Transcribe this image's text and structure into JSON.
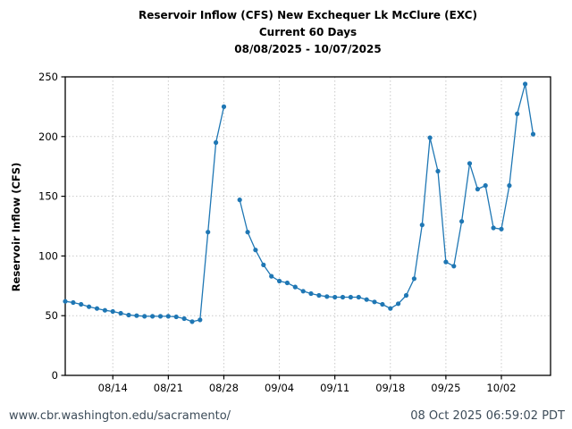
{
  "title": {
    "line1": "Reservoir Inflow (CFS) New Exchequer Lk McClure (EXC)",
    "line2": "Current 60 Days",
    "line3": "08/08/2025 - 10/07/2025"
  },
  "y_axis_label": "Reservoir Inflow (CFS)",
  "footer": {
    "url": "www.cbr.washington.edu/sacramento/",
    "timestamp": "08 Oct 2025 06:59:02 PDT"
  },
  "colors": {
    "line": "#1f77b4",
    "marker": "#1f77b4",
    "grid": "#c9c9c9",
    "axis": "#000000",
    "footer_text": "#3d4c59"
  },
  "chart_data": {
    "type": "line",
    "title": "Reservoir Inflow (CFS) New Exchequer Lk McClure (EXC) — Current 60 Days — 08/08/2025 - 10/07/2025",
    "xlabel": "",
    "ylabel": "Reservoir Inflow (CFS)",
    "legend_position": "none",
    "grid": "dotted",
    "marker_style": "circle",
    "ylim": [
      0,
      250
    ],
    "yticks": [
      0,
      50,
      100,
      150,
      200,
      250
    ],
    "x_axis_span_days": 61.2,
    "xtick_labels": [
      "08/14",
      "08/21",
      "08/28",
      "09/04",
      "09/11",
      "09/18",
      "09/25",
      "10/02"
    ],
    "xtick_day_positions": [
      6,
      13,
      20,
      27,
      34,
      41,
      48,
      55
    ],
    "gap_dates": [
      "08/29"
    ],
    "x": [
      "08/08",
      "08/09",
      "08/10",
      "08/11",
      "08/12",
      "08/13",
      "08/14",
      "08/15",
      "08/16",
      "08/17",
      "08/18",
      "08/19",
      "08/20",
      "08/21",
      "08/22",
      "08/23",
      "08/24",
      "08/25",
      "08/26",
      "08/27",
      "08/28",
      "08/29",
      "08/30",
      "08/31",
      "09/01",
      "09/02",
      "09/03",
      "09/04",
      "09/05",
      "09/06",
      "09/07",
      "09/08",
      "09/09",
      "09/10",
      "09/11",
      "09/12",
      "09/13",
      "09/14",
      "09/15",
      "09/16",
      "09/17",
      "09/18",
      "09/19",
      "09/20",
      "09/21",
      "09/22",
      "09/23",
      "09/24",
      "09/25",
      "09/26",
      "09/27",
      "09/28",
      "09/29",
      "09/30",
      "10/01",
      "10/02",
      "10/03",
      "10/04",
      "10/05",
      "10/06"
    ],
    "values": [
      62,
      61,
      59.5,
      57.5,
      56,
      54.5,
      53.5,
      52,
      50.5,
      50,
      49.5,
      49.5,
      49.5,
      49.5,
      49,
      47.5,
      45,
      46.5,
      120,
      195,
      225,
      null,
      147,
      120,
      105,
      92.5,
      83,
      79,
      77.5,
      74,
      70.5,
      68.5,
      67,
      66,
      65.5,
      65.5,
      65.5,
      65.5,
      63.5,
      61.5,
      59.5,
      56,
      60,
      67,
      81,
      126,
      199,
      171,
      95,
      91.5,
      129,
      177.5,
      156,
      159,
      123.5,
      122.5,
      159,
      219,
      244,
      202
    ]
  }
}
